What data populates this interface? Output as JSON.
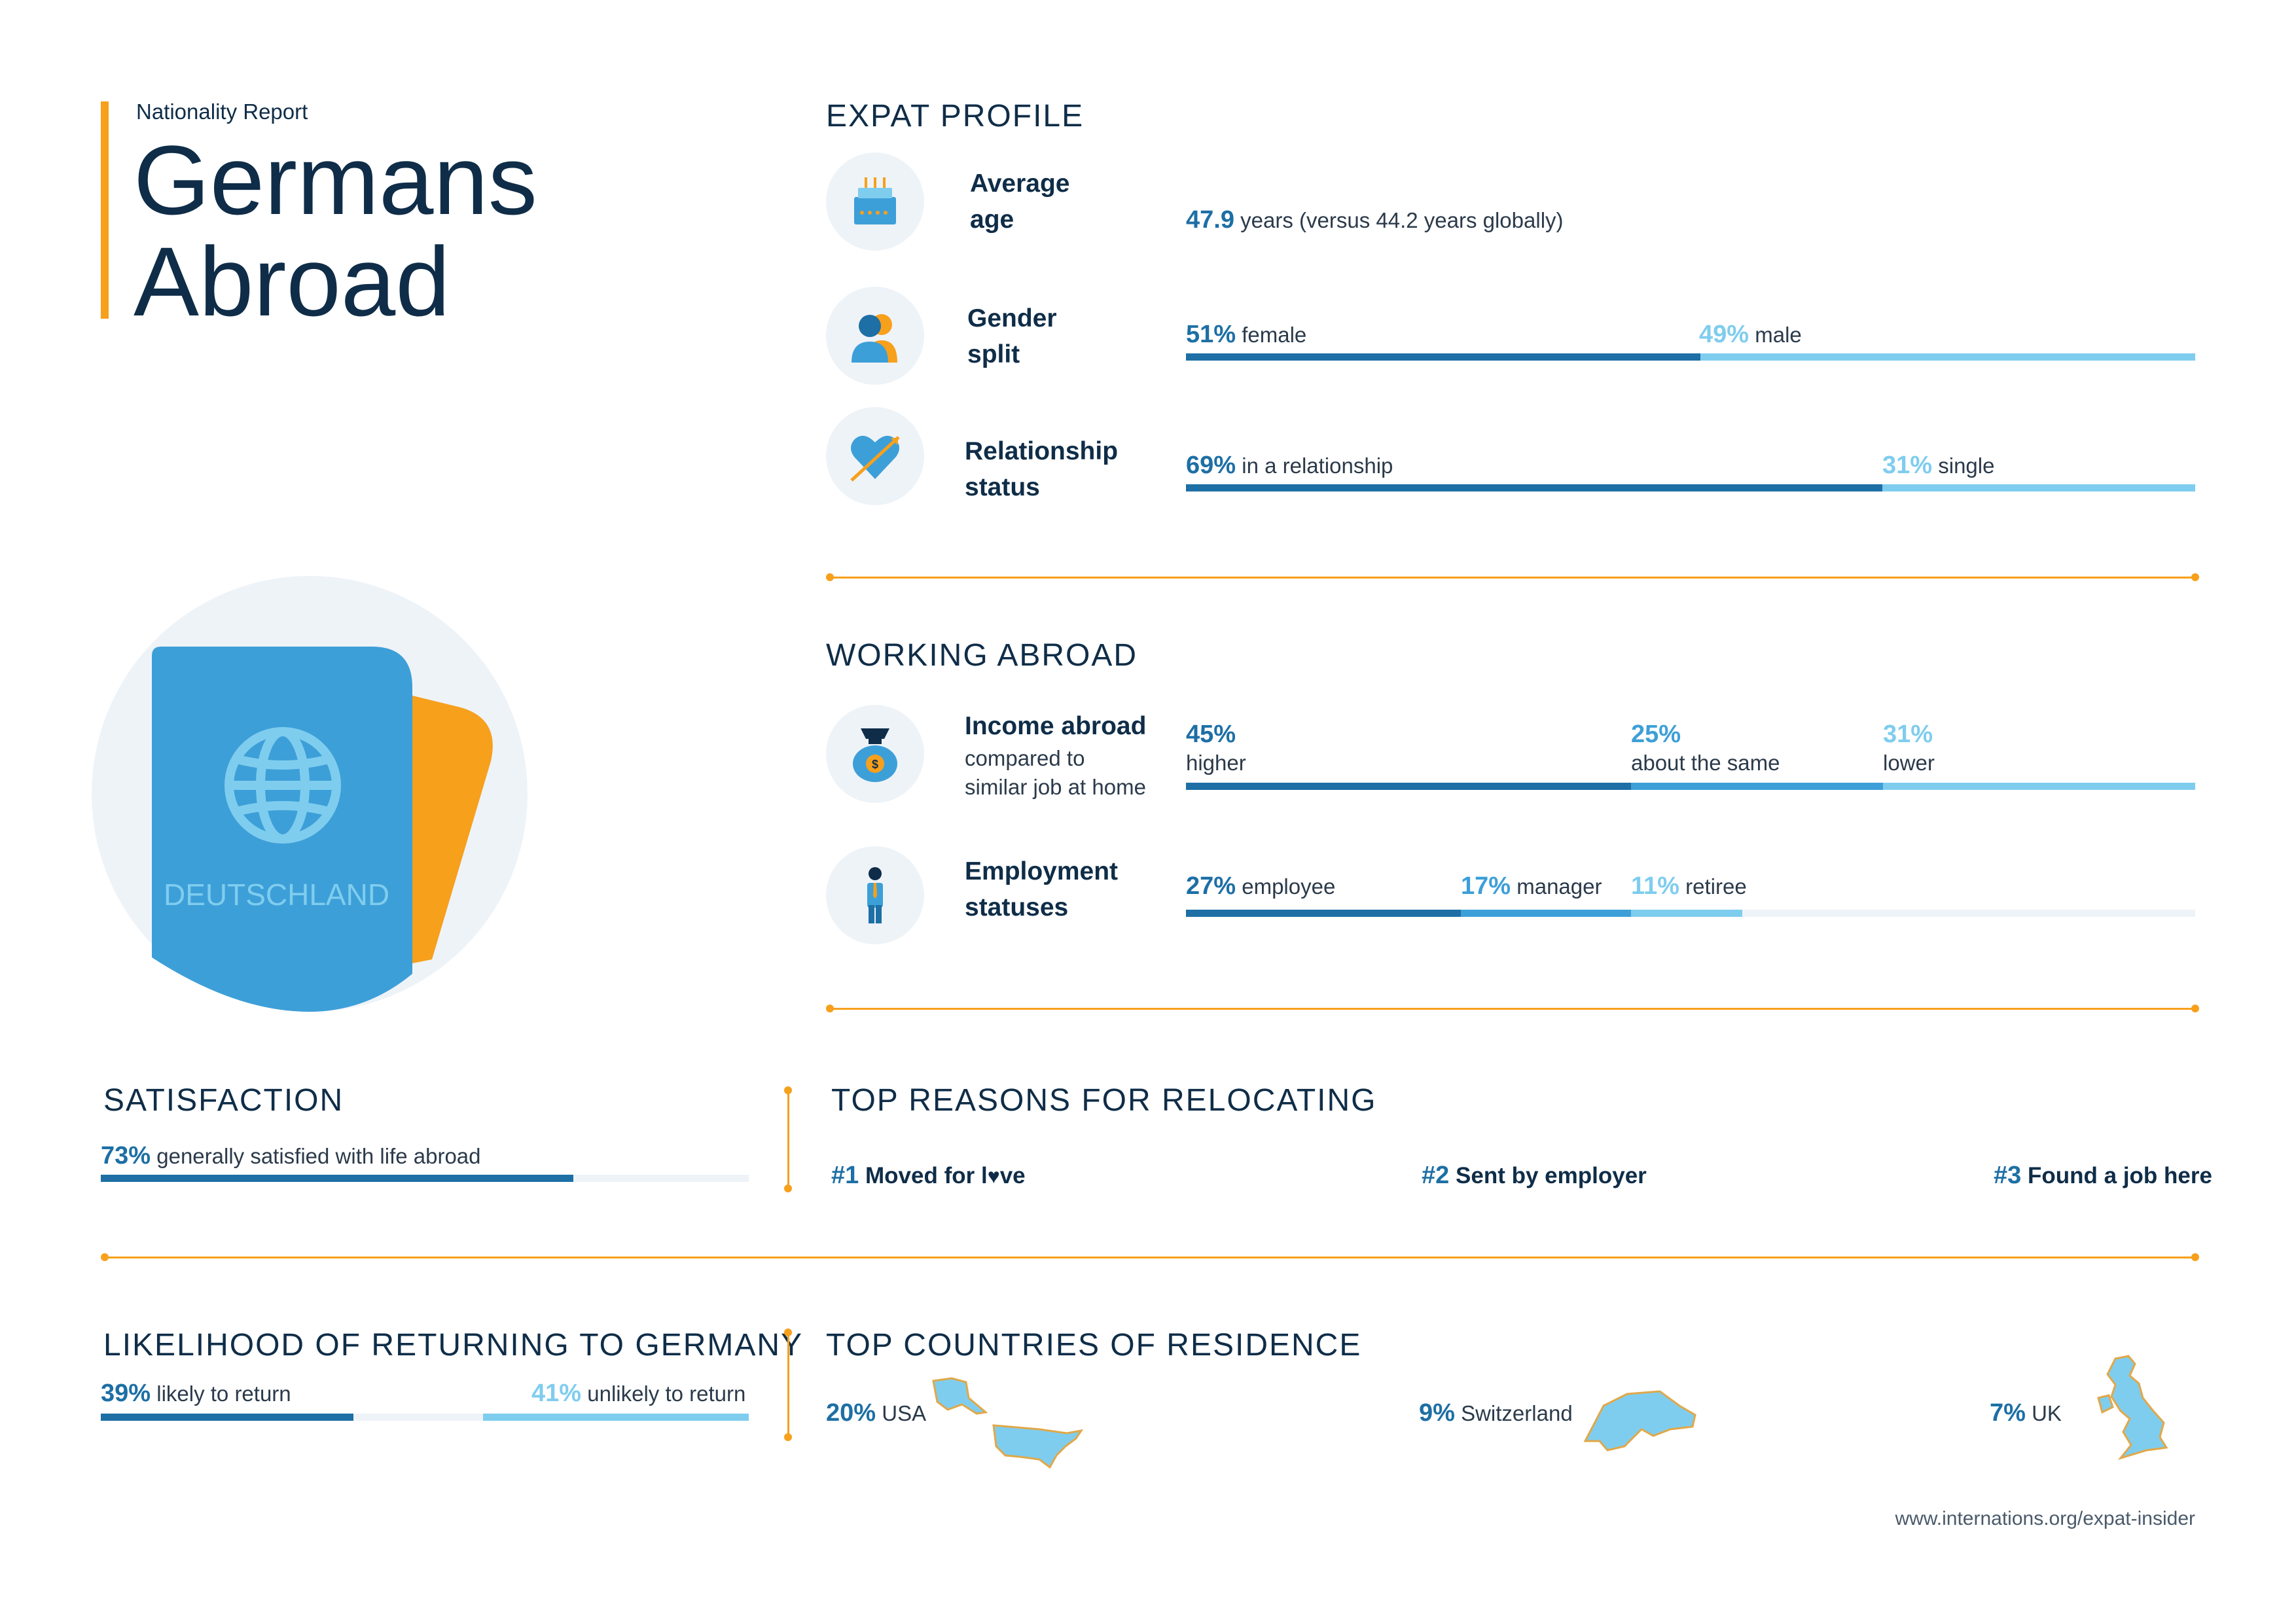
{
  "header": {
    "kicker": "Nationality Report",
    "title_line1": "Germans",
    "title_line2": "Abroad",
    "passport_text": "DEUTSCHLAND"
  },
  "expat_profile": {
    "heading": "EXPAT PROFILE",
    "age": {
      "label_line1": "Average",
      "label_line2": "age",
      "value": "47.9",
      "text": "years (versus 44.2 years globally)",
      "icon": "birthday-cake-icon"
    },
    "gender": {
      "label_line1": "Gender",
      "label_line2": "split",
      "female_pct": "51%",
      "female_text": "female",
      "male_pct": "49%",
      "male_text": "male",
      "female_value": 51,
      "male_value": 49,
      "icon": "people-icon"
    },
    "relationship": {
      "label_line1": "Relationship",
      "label_line2": "status",
      "rel_pct": "69%",
      "rel_text": "in a relationship",
      "single_pct": "31%",
      "single_text": "single",
      "rel_value": 69,
      "single_value": 31,
      "icon": "heart-arrow-icon"
    }
  },
  "working_abroad": {
    "heading": "WORKING ABROAD",
    "income": {
      "label_title": "Income abroad",
      "label_sub1": "compared to",
      "label_sub2": "similar job at home",
      "higher_pct": "45%",
      "higher_text": "higher",
      "same_pct": "25%",
      "same_text": "about the same",
      "lower_pct": "31%",
      "lower_text": "lower",
      "values": [
        45,
        25,
        31
      ],
      "icon": "money-bag-icon"
    },
    "employment": {
      "label_line1": "Employment",
      "label_line2": "statuses",
      "employee_pct": "27%",
      "employee_text": "employee",
      "manager_pct": "17%",
      "manager_text": "manager",
      "retiree_pct": "11%",
      "retiree_text": "retiree",
      "values": [
        27,
        17,
        11
      ],
      "icon": "businessman-icon"
    }
  },
  "satisfaction": {
    "heading": "SATISFACTION",
    "pct": "73%",
    "text": "generally satisfied with life abroad",
    "value": 73
  },
  "reasons": {
    "heading": "TOP REASONS FOR RELOCATING",
    "items": [
      {
        "num": "#1",
        "before": "Moved for l",
        "after": "ve"
      },
      {
        "num": "#2",
        "text": "Sent by employer"
      },
      {
        "num": "#3",
        "text": "Found a job here"
      }
    ]
  },
  "returning": {
    "heading": "LIKELIHOOD OF RETURNING TO GERMANY",
    "likely_pct": "39%",
    "likely_text": "likely to return",
    "unlikely_pct": "41%",
    "unlikely_text": "unlikely to return",
    "likely_value": 39,
    "unlikely_value": 41
  },
  "countries": {
    "heading": "TOP COUNTRIES OF RESIDENCE",
    "items": [
      {
        "pct": "20%",
        "name": "USA"
      },
      {
        "pct": "9%",
        "name": "Switzerland"
      },
      {
        "pct": "7%",
        "name": "UK"
      }
    ]
  },
  "footer": {
    "url": "www.internations.org/expat-insider"
  },
  "colors": {
    "navy": "#0f2d48",
    "dark_blue": "#1d6fa5",
    "mid_blue": "#3d9fd8",
    "light_blue": "#7fcdee",
    "orange": "#f7a01c",
    "track": "#eef3f8"
  }
}
